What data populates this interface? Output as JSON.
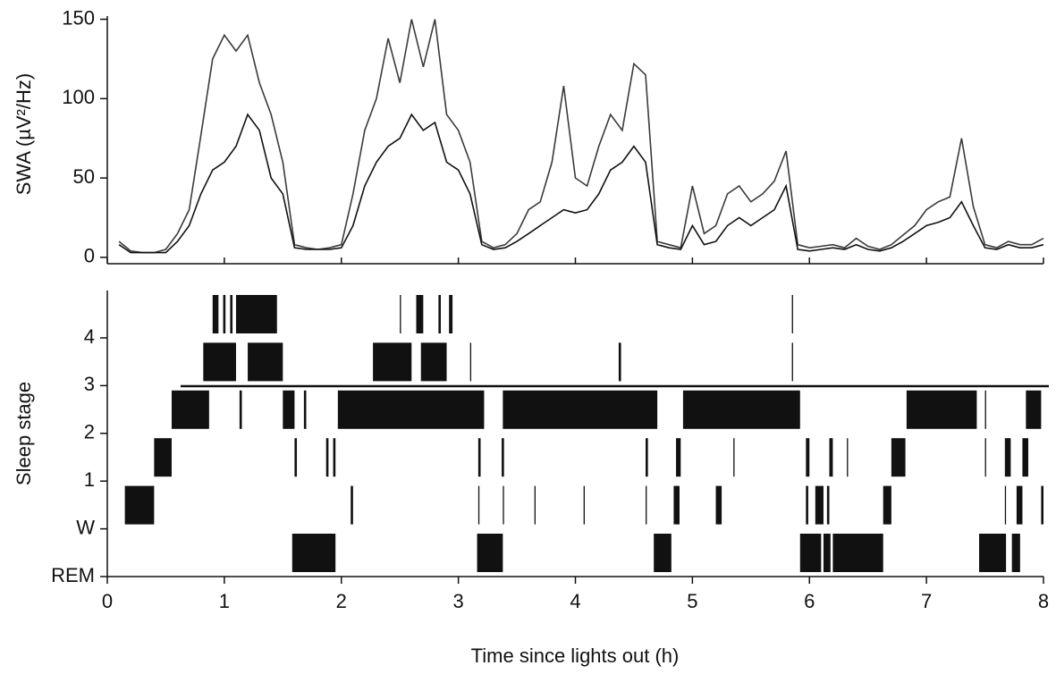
{
  "chart_data": [
    {
      "type": "line",
      "ylabel": "SWA (µV²/Hz)",
      "xlim": [
        0,
        8
      ],
      "ylim": [
        -4,
        152
      ],
      "yticks": [
        0,
        50,
        100,
        150
      ],
      "x": [
        0.1,
        0.2,
        0.3,
        0.4,
        0.5,
        0.6,
        0.7,
        0.8,
        0.9,
        1.0,
        1.1,
        1.2,
        1.3,
        1.4,
        1.5,
        1.6,
        1.7,
        1.8,
        1.9,
        2.0,
        2.1,
        2.2,
        2.3,
        2.4,
        2.5,
        2.6,
        2.7,
        2.8,
        2.9,
        3.0,
        3.1,
        3.2,
        3.3,
        3.4,
        3.5,
        3.6,
        3.7,
        3.8,
        3.9,
        4.0,
        4.1,
        4.2,
        4.3,
        4.4,
        4.5,
        4.6,
        4.7,
        4.8,
        4.9,
        5.0,
        5.1,
        5.2,
        5.3,
        5.4,
        5.5,
        5.6,
        5.7,
        5.8,
        5.9,
        6.0,
        6.1,
        6.2,
        6.3,
        6.4,
        6.5,
        6.6,
        6.7,
        6.8,
        6.9,
        7.0,
        7.1,
        7.2,
        7.3,
        7.4,
        7.5,
        7.6,
        7.7,
        7.8,
        7.9,
        8.0
      ],
      "series": [
        {
          "color": "#3a3a3a",
          "values": [
            10,
            4,
            3,
            3,
            5,
            15,
            30,
            77,
            125,
            140,
            130,
            140,
            110,
            90,
            60,
            8,
            6,
            5,
            6,
            8,
            40,
            80,
            100,
            138,
            110,
            150,
            120,
            150,
            90,
            80,
            60,
            10,
            6,
            8,
            15,
            30,
            35,
            60,
            108,
            50,
            45,
            70,
            90,
            80,
            122,
            115,
            10,
            8,
            6,
            45,
            15,
            20,
            40,
            45,
            35,
            40,
            48,
            67,
            8,
            6,
            7,
            8,
            6,
            12,
            7,
            5,
            8,
            14,
            20,
            30,
            35,
            38,
            75,
            32,
            8,
            6,
            10,
            8,
            8,
            12
          ]
        },
        {
          "color": "#111111",
          "values": [
            8,
            3,
            3,
            3,
            3,
            10,
            20,
            40,
            55,
            60,
            70,
            90,
            80,
            50,
            40,
            6,
            5,
            5,
            5,
            6,
            20,
            45,
            60,
            70,
            75,
            90,
            80,
            85,
            60,
            55,
            40,
            8,
            5,
            6,
            10,
            15,
            20,
            25,
            30,
            28,
            30,
            40,
            55,
            60,
            70,
            60,
            8,
            6,
            5,
            20,
            8,
            10,
            20,
            25,
            20,
            25,
            30,
            45,
            5,
            4,
            5,
            6,
            5,
            8,
            5,
            4,
            6,
            10,
            15,
            20,
            22,
            25,
            35,
            20,
            6,
            5,
            8,
            6,
            6,
            8
          ]
        }
      ]
    },
    {
      "type": "raster",
      "ylabel": "Sleep stage",
      "xlabel": "Time since lights out (h)",
      "xlim": [
        0,
        8
      ],
      "xticks": [
        0,
        1,
        2,
        3,
        4,
        5,
        6,
        7,
        8
      ],
      "color": "#111111",
      "categories": [
        "REM",
        "W",
        "1",
        "2",
        "3",
        "4"
      ],
      "intervals": [
        [
          [
            1.58,
            1.95
          ],
          [
            3.16,
            3.38
          ],
          [
            4.67,
            4.82
          ],
          [
            5.92,
            6.1
          ],
          [
            6.12,
            6.18
          ],
          [
            6.2,
            6.63
          ],
          [
            7.45,
            7.68
          ],
          [
            7.73,
            7.8
          ]
        ],
        [
          [
            0.15,
            0.4
          ],
          [
            2.08,
            2.1
          ],
          [
            3.17,
            3.18
          ],
          [
            3.38,
            3.39
          ],
          [
            3.65,
            3.66
          ],
          [
            4.07,
            4.08
          ],
          [
            4.6,
            4.61
          ],
          [
            4.84,
            4.89
          ],
          [
            5.2,
            5.25
          ],
          [
            5.97,
            5.99
          ],
          [
            6.05,
            6.12
          ],
          [
            6.15,
            6.17
          ],
          [
            6.63,
            6.7
          ],
          [
            7.67,
            7.68
          ],
          [
            7.77,
            7.82
          ],
          [
            7.98,
            8.0
          ]
        ],
        [
          [
            0.4,
            0.55
          ],
          [
            1.6,
            1.62
          ],
          [
            1.87,
            1.89
          ],
          [
            1.93,
            1.95
          ],
          [
            3.17,
            3.19
          ],
          [
            3.37,
            3.39
          ],
          [
            4.6,
            4.62
          ],
          [
            4.86,
            4.9
          ],
          [
            5.35,
            5.36
          ],
          [
            5.97,
            6.0
          ],
          [
            6.17,
            6.2
          ],
          [
            6.32,
            6.33
          ],
          [
            6.7,
            6.82
          ],
          [
            7.5,
            7.51
          ],
          [
            7.67,
            7.72
          ],
          [
            7.82,
            7.87
          ]
        ],
        [
          [
            0.55,
            0.87
          ],
          [
            1.13,
            1.15
          ],
          [
            1.5,
            1.6
          ],
          [
            1.68,
            1.7
          ],
          [
            1.97,
            3.22
          ],
          [
            3.38,
            4.7
          ],
          [
            4.92,
            5.92
          ],
          [
            6.83,
            7.43
          ],
          [
            7.5,
            7.51
          ],
          [
            7.85,
            7.98
          ]
        ],
        [
          [
            0.82,
            1.1
          ],
          [
            1.2,
            1.5
          ],
          [
            2.27,
            2.6
          ],
          [
            2.68,
            2.9
          ],
          [
            3.1,
            3.11
          ],
          [
            4.37,
            4.39
          ],
          [
            5.85,
            5.86
          ]
        ],
        [
          [
            0.9,
            0.95
          ],
          [
            0.99,
            1.01
          ],
          [
            1.05,
            1.07
          ],
          [
            1.1,
            1.45
          ],
          [
            2.5,
            2.51
          ],
          [
            2.64,
            2.7
          ],
          [
            2.83,
            2.85
          ],
          [
            2.92,
            2.95
          ],
          [
            5.85,
            5.86
          ]
        ]
      ]
    }
  ]
}
